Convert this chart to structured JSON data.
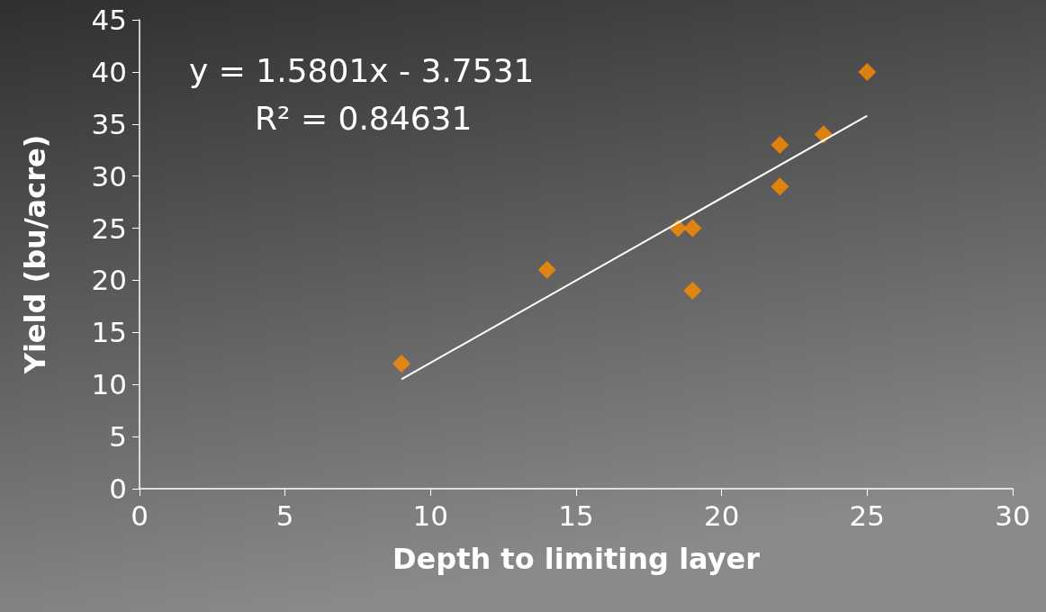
{
  "chart_data": {
    "type": "scatter",
    "xlabel": "Depth to limiting layer",
    "ylabel": "Yield (bu/acre)",
    "annotations": [
      "y = 1.5801x - 3.7531",
      "R² = 0.84631"
    ],
    "xlim": [
      0,
      30
    ],
    "xticks": [
      0,
      5,
      10,
      15,
      20,
      25,
      30
    ],
    "ylim": [
      0,
      45
    ],
    "yticks": [
      0,
      5,
      10,
      15,
      20,
      25,
      30,
      35,
      40,
      45
    ],
    "grid": false,
    "marker": "diamond",
    "series": [
      {
        "color": "#ff8c00",
        "x": [
          9,
          14,
          18.5,
          19,
          19,
          22,
          22,
          23.5,
          25
        ],
        "values": [
          12,
          21,
          25,
          25,
          19,
          33,
          29,
          34,
          40
        ]
      },
      {
        "type": "line",
        "color": "#ffffff",
        "marker": "none",
        "x": [
          9,
          25
        ],
        "values": [
          10.5,
          35.8
        ]
      }
    ]
  }
}
